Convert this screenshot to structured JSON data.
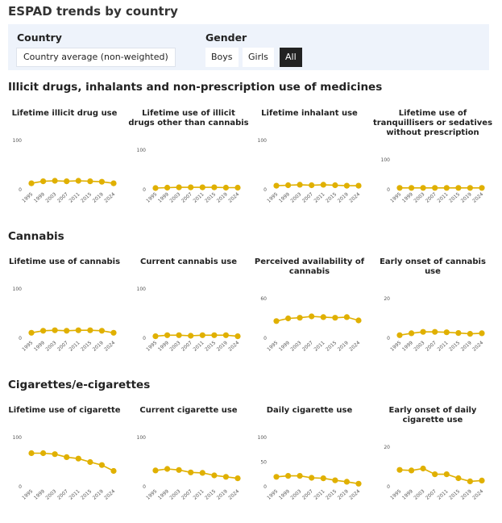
{
  "page": {
    "title": "ESPAD trends by country"
  },
  "filters": {
    "country_label": "Country",
    "country_value": "Country average (non-weighted)",
    "gender_label": "Gender",
    "gender_options": [
      "Boys",
      "Girls",
      "All"
    ],
    "gender_selected": "All"
  },
  "colors": {
    "line": "#e0b000",
    "filter_bg": "#eef3fb",
    "active_btn": "#222222"
  },
  "sections": [
    {
      "title": "Illicit drugs, inhalants and non-prescription use of medicines"
    },
    {
      "title": "Cannabis"
    },
    {
      "title": "Cigarettes/e-cigarettes"
    }
  ],
  "chart_data": [
    {
      "type": "line",
      "section": 0,
      "title": "Lifetime illicit drug use",
      "x": [
        "1995",
        "1999",
        "2003",
        "2007",
        "2011",
        "2015",
        "2019",
        "2024"
      ],
      "values": [
        13,
        17,
        18,
        17,
        18,
        17,
        16,
        13
      ],
      "ylim": [
        0,
        100
      ],
      "yticks": [
        "0",
        "100"
      ]
    },
    {
      "type": "line",
      "section": 0,
      "title": "Lifetime use of illicit drugs other than cannabis",
      "x": [
        "1995",
        "1999",
        "2003",
        "2007",
        "2011",
        "2015",
        "2019",
        "2024"
      ],
      "values": [
        4,
        5,
        6,
        6,
        6,
        6,
        5,
        5
      ],
      "ylim": [
        0,
        100
      ],
      "yticks": [
        "0",
        "100"
      ]
    },
    {
      "type": "line",
      "section": 0,
      "title": "Lifetime inhalant use",
      "x": [
        "1995",
        "1999",
        "2003",
        "2007",
        "2011",
        "2015",
        "2019",
        "2024"
      ],
      "values": [
        8,
        9,
        10,
        9,
        10,
        9,
        8,
        8
      ],
      "ylim": [
        0,
        100
      ],
      "yticks": [
        "0",
        "100"
      ]
    },
    {
      "type": "line",
      "section": 0,
      "title": "Lifetime use of tranquillisers or sedatives without prescription",
      "x": [
        "1995",
        "1999",
        "2003",
        "2007",
        "2011",
        "2015",
        "2019",
        "2024"
      ],
      "values": [
        6,
        6,
        6,
        6,
        6,
        6,
        6,
        6
      ],
      "ylim": [
        0,
        100
      ],
      "yticks": [
        "0",
        "100"
      ]
    },
    {
      "type": "line",
      "section": 1,
      "title": "Lifetime use of cannabis",
      "x": [
        "1995",
        "1999",
        "2003",
        "2007",
        "2011",
        "2015",
        "2019",
        "2024"
      ],
      "values": [
        11,
        15,
        16,
        15,
        16,
        16,
        15,
        11
      ],
      "ylim": [
        0,
        100
      ],
      "yticks": [
        "0",
        "100"
      ]
    },
    {
      "type": "line",
      "section": 1,
      "title": "Current cannabis use",
      "x": [
        "1995",
        "1999",
        "2003",
        "2007",
        "2011",
        "2015",
        "2019",
        "2024"
      ],
      "values": [
        4,
        6,
        6,
        5,
        6,
        6,
        6,
        4
      ],
      "ylim": [
        0,
        100
      ],
      "yticks": [
        "0",
        "100"
      ]
    },
    {
      "type": "line",
      "section": 1,
      "title": "Perceived availability of cannabis",
      "x": [
        "1995",
        "1999",
        "2003",
        "2007",
        "2011",
        "2015",
        "2019",
        "2024"
      ],
      "values": [
        26,
        30,
        31,
        33,
        32,
        31,
        32,
        27
      ],
      "ylim": [
        0,
        60
      ],
      "yticks": [
        "0",
        "60"
      ]
    },
    {
      "type": "line",
      "section": 1,
      "title": "Early onset of cannabis use",
      "x": [
        "1995",
        "1999",
        "2003",
        "2007",
        "2011",
        "2015",
        "2019",
        "2024"
      ],
      "values": [
        1.5,
        2.5,
        3.2,
        3.2,
        3.0,
        2.6,
        2.2,
        2.5
      ],
      "ylim": [
        0,
        20
      ],
      "yticks": [
        "0",
        "20"
      ]
    },
    {
      "type": "line",
      "section": 2,
      "title": "Lifetime use of cigarette",
      "x": [
        "1995",
        "1999",
        "2003",
        "2007",
        "2011",
        "2015",
        "2019",
        "2024"
      ],
      "values": [
        68,
        68,
        66,
        60,
        57,
        50,
        44,
        32
      ],
      "ylim": [
        0,
        100
      ],
      "yticks": [
        "0",
        "100"
      ]
    },
    {
      "type": "line",
      "section": 2,
      "title": "Current cigarette use",
      "x": [
        "1995",
        "1999",
        "2003",
        "2007",
        "2011",
        "2015",
        "2019",
        "2024"
      ],
      "values": [
        33,
        36,
        34,
        29,
        28,
        23,
        20,
        17
      ],
      "ylim": [
        0,
        100
      ],
      "yticks": [
        "0",
        "100"
      ]
    },
    {
      "type": "line",
      "section": 2,
      "title": "Daily cigarette use",
      "x": [
        "1995",
        "1999",
        "2003",
        "2007",
        "2011",
        "2015",
        "2019",
        "2024"
      ],
      "values": [
        20,
        22,
        22,
        18,
        17,
        13,
        10,
        6
      ],
      "ylim": [
        0,
        100
      ],
      "yticks": [
        "0",
        "50",
        "100"
      ]
    },
    {
      "type": "line",
      "section": 2,
      "title": "Early onset of daily cigarette use",
      "x": [
        "1995",
        "1999",
        "2003",
        "2007",
        "2011",
        "2015",
        "2019",
        "2024"
      ],
      "values": [
        8.5,
        8.2,
        9.2,
        6.3,
        6.3,
        4.3,
        2.7,
        3.1
      ],
      "ylim": [
        0,
        20
      ],
      "yticks": [
        "0",
        "20"
      ]
    }
  ]
}
